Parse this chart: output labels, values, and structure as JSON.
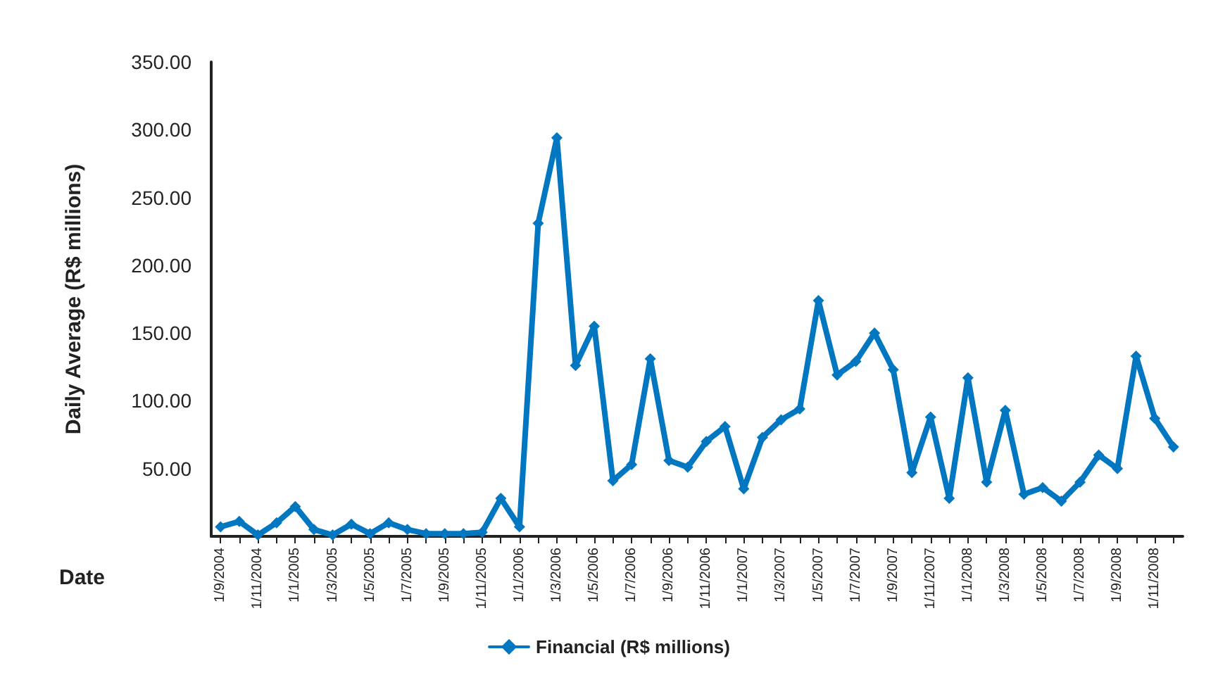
{
  "chart_data": {
    "type": "line",
    "xlabel": "Date",
    "ylabel": "Daily Average (R$ millions)",
    "categories": [
      "1/9/2004",
      null,
      "1/11/2004",
      null,
      "1/1/2005",
      null,
      "1/3/2005",
      null,
      "1/5/2005",
      null,
      "1/7/2005",
      null,
      "1/9/2005",
      null,
      "1/11/2005",
      null,
      "1/1/2006",
      null,
      "1/3/2006",
      null,
      "1/5/2006",
      null,
      "1/7/2006",
      null,
      "1/9/2006",
      null,
      "1/11/2006",
      null,
      "1/1/2007",
      null,
      "1/3/2007",
      null,
      "1/5/2007",
      null,
      "1/7/2007",
      null,
      "1/9/2007",
      null,
      "1/11/2007",
      null,
      "1/1/2008",
      null,
      "1/3/2008",
      null,
      "1/5/2008",
      null,
      "1/7/2008",
      null,
      "1/9/2008",
      null,
      "1/11/2008",
      null
    ],
    "series": [
      {
        "name": "Financial (R$ millions)",
        "color": "#0077c0",
        "values": [
          7,
          11,
          1,
          10,
          22,
          5,
          1,
          9,
          2,
          10,
          5,
          2,
          2,
          2,
          3,
          28,
          7,
          231,
          294,
          126,
          155,
          41,
          53,
          131,
          56,
          51,
          70,
          81,
          35,
          73,
          86,
          94,
          174,
          119,
          129,
          150,
          123,
          47,
          88,
          28,
          117,
          40,
          93,
          31,
          36,
          26,
          40,
          60,
          50,
          133,
          87,
          66
        ]
      }
    ],
    "ylim": [
      0,
      350
    ],
    "yticks": [
      {
        "value": 50,
        "label": "50.00"
      },
      {
        "value": 100,
        "label": "100.00"
      },
      {
        "value": 150,
        "label": "150.00"
      },
      {
        "value": 200,
        "label": "200.00"
      },
      {
        "value": 250,
        "label": "250.00"
      },
      {
        "value": 300,
        "label": "300.00"
      },
      {
        "value": 350,
        "label": "350.00"
      }
    ],
    "grid": false,
    "legend": "bottom",
    "marker": "diamond",
    "line_style": "solid"
  }
}
